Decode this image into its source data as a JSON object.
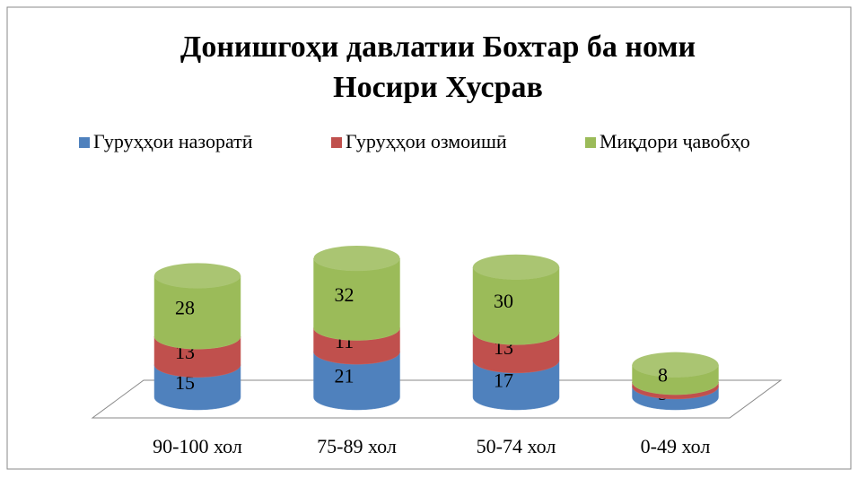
{
  "chart_data": {
    "type": "bar3d_stacked_cylinder",
    "title": [
      "Донишгоҳи давлатии Бохтар ба номи",
      "Носири Хусрав"
    ],
    "categories": [
      "90-100 хол",
      "75-89 хол",
      "50-74 хол",
      "0-49 хол"
    ],
    "series": [
      {
        "name": "Гуруҳҳои назоратӣ",
        "color": "#4f81bd",
        "values": [
          15,
          21,
          17,
          5
        ]
      },
      {
        "name": "Гуруҳҳои озмоишӣ",
        "color": "#c0504d",
        "values": [
          13,
          11,
          13,
          2
        ]
      },
      {
        "name": "Миқдори ҷавобҳо",
        "color": "#9bbb59",
        "values": [
          28,
          32,
          30,
          8
        ]
      }
    ],
    "legend": "top"
  }
}
